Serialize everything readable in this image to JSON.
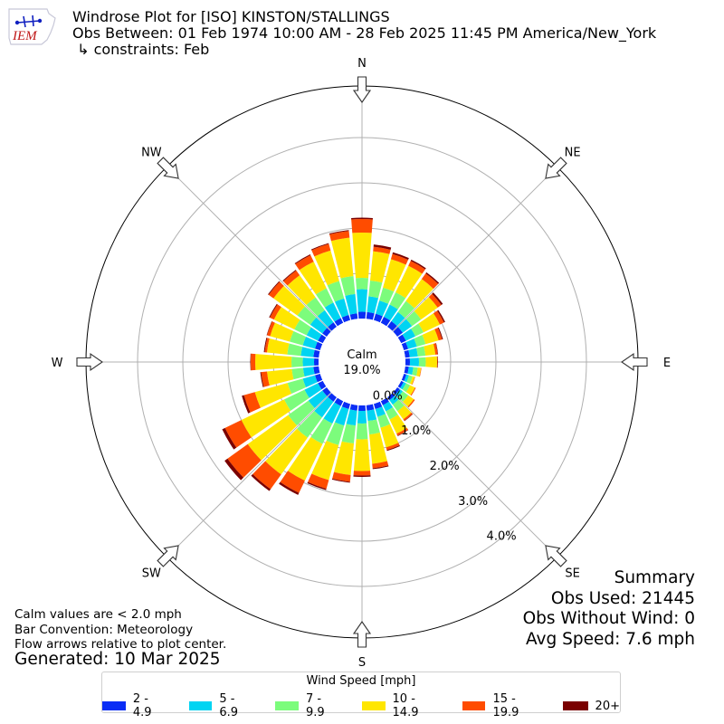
{
  "header": {
    "logo_text": "IEM",
    "title_line1": "Windrose Plot for [ISO] KINSTON/STALLINGS",
    "title_line2": "Obs Between: 01 Feb 1974 10:00 AM - 28 Feb 2025 11:45 PM America/New_York",
    "title_line3": " ↳ constraints: Feb"
  },
  "summary": {
    "heading": "Summary",
    "obs_used": "Obs Used: 21445",
    "obs_without_wind": "Obs Without Wind: 0",
    "avg_speed": "Avg Speed: 7.6 mph"
  },
  "notes": {
    "calm_note": "Calm values are < 2.0 mph",
    "bar_convention": "Bar Convention: Meteorology",
    "flow_arrows": "Flow arrows relative to plot center.",
    "generated": "Generated: 10 Mar 2025"
  },
  "chart_data": {
    "type": "windrose",
    "calm_label": "Calm",
    "calm_percent_label": "19.0%",
    "calm_percent": 19.0,
    "radial_ticks": [
      0.0,
      1.0,
      2.0,
      3.0,
      4.0
    ],
    "radial_tick_labels": [
      "0.0%",
      "1.0%",
      "2.0%",
      "3.0%",
      "4.0%"
    ],
    "r_max": 4.5,
    "compass_labels": [
      "N",
      "NE",
      "E",
      "SE",
      "S",
      "SW",
      "W",
      "NW"
    ],
    "legend": {
      "title": "Wind Speed [mph]",
      "bins": [
        "2 - 4.9",
        "5 - 6.9",
        "7 - 9.9",
        "10 - 14.9",
        "15 - 19.9",
        "20+"
      ],
      "colors": [
        "#0a2df5",
        "#00d4f2",
        "#7cfc7c",
        "#ffe600",
        "#ff4c00",
        "#7a0000"
      ]
    },
    "direction_step_deg": 10,
    "cumulative_percent_by_direction": [
      {
        "dir": 0,
        "values": [
          0.15,
          0.65,
          0.9,
          1.9,
          2.2,
          2.23
        ]
      },
      {
        "dir": 10,
        "values": [
          0.15,
          0.5,
          0.85,
          1.5,
          1.6,
          1.65
        ]
      },
      {
        "dir": 20,
        "values": [
          0.15,
          0.45,
          0.75,
          1.4,
          1.52,
          1.56
        ]
      },
      {
        "dir": 30,
        "values": [
          0.15,
          0.45,
          0.75,
          1.4,
          1.52,
          1.55
        ]
      },
      {
        "dir": 40,
        "values": [
          0.15,
          0.4,
          0.7,
          1.3,
          1.45,
          1.48
        ]
      },
      {
        "dir": 50,
        "values": [
          0.15,
          0.4,
          0.65,
          1.1,
          1.2,
          1.24
        ]
      },
      {
        "dir": 60,
        "values": [
          0.12,
          0.35,
          0.55,
          0.95,
          1.05,
          1.08
        ]
      },
      {
        "dir": 70,
        "values": [
          0.1,
          0.3,
          0.5,
          0.8,
          0.88,
          0.9
        ]
      },
      {
        "dir": 80,
        "values": [
          0.1,
          0.28,
          0.45,
          0.67,
          0.72,
          0.73
        ]
      },
      {
        "dir": 90,
        "values": [
          0.1,
          0.3,
          0.45,
          0.7,
          0.71,
          0.72
        ]
      },
      {
        "dir": 100,
        "values": [
          0.08,
          0.18,
          0.28,
          0.35,
          0.36,
          0.36
        ]
      },
      {
        "dir": 110,
        "values": [
          0.06,
          0.12,
          0.2,
          0.25,
          0.26,
          0.26
        ]
      },
      {
        "dir": 120,
        "values": [
          0.06,
          0.12,
          0.22,
          0.34,
          0.36,
          0.36
        ]
      },
      {
        "dir": 130,
        "values": [
          0.07,
          0.15,
          0.3,
          0.45,
          0.48,
          0.48
        ]
      },
      {
        "dir": 140,
        "values": [
          0.08,
          0.2,
          0.38,
          0.6,
          0.64,
          0.65
        ]
      },
      {
        "dir": 150,
        "values": [
          0.1,
          0.25,
          0.45,
          0.8,
          0.85,
          0.86
        ]
      },
      {
        "dir": 160,
        "values": [
          0.12,
          0.3,
          0.55,
          1.0,
          1.06,
          1.08
        ]
      },
      {
        "dir": 170,
        "values": [
          0.12,
          0.35,
          0.65,
          1.3,
          1.4,
          1.42
        ]
      },
      {
        "dir": 180,
        "values": [
          0.12,
          0.4,
          0.75,
          1.45,
          1.55,
          1.58
        ]
      },
      {
        "dir": 190,
        "values": [
          0.12,
          0.45,
          0.85,
          1.55,
          1.7,
          1.72
        ]
      },
      {
        "dir": 200,
        "values": [
          0.12,
          0.5,
          0.95,
          1.75,
          1.95,
          1.98
        ]
      },
      {
        "dir": 210,
        "values": [
          0.12,
          0.55,
          1.05,
          1.95,
          2.25,
          2.3
        ]
      },
      {
        "dir": 220,
        "values": [
          0.12,
          0.55,
          1.1,
          2.1,
          2.5,
          2.55
        ]
      },
      {
        "dir": 230,
        "values": [
          0.12,
          0.5,
          1.05,
          2.15,
          2.7,
          2.78
        ]
      },
      {
        "dir": 240,
        "values": [
          0.12,
          0.45,
          0.95,
          2.0,
          2.4,
          2.47
        ]
      },
      {
        "dir": 250,
        "values": [
          0.12,
          0.4,
          0.75,
          1.5,
          1.75,
          1.8
        ]
      },
      {
        "dir": 260,
        "values": [
          0.12,
          0.35,
          0.6,
          1.15,
          1.28,
          1.3
        ]
      },
      {
        "dir": 270,
        "values": [
          0.1,
          0.35,
          0.6,
          1.4,
          1.5,
          1.51
        ]
      },
      {
        "dir": 280,
        "values": [
          0.12,
          0.4,
          0.7,
          1.15,
          1.2,
          1.22
        ]
      },
      {
        "dir": 290,
        "values": [
          0.12,
          0.4,
          0.7,
          1.15,
          1.22,
          1.23
        ]
      },
      {
        "dir": 300,
        "values": [
          0.12,
          0.4,
          0.7,
          1.2,
          1.3,
          1.32
        ]
      },
      {
        "dir": 310,
        "values": [
          0.12,
          0.45,
          0.8,
          1.45,
          1.58,
          1.6
        ]
      },
      {
        "dir": 320,
        "values": [
          0.12,
          0.45,
          0.8,
          1.4,
          1.53,
          1.55
        ]
      },
      {
        "dir": 330,
        "values": [
          0.12,
          0.5,
          0.85,
          1.5,
          1.66,
          1.68
        ]
      },
      {
        "dir": 340,
        "values": [
          0.12,
          0.5,
          0.9,
          1.6,
          1.75,
          1.77
        ]
      },
      {
        "dir": 350,
        "values": [
          0.12,
          0.55,
          0.95,
          1.8,
          1.95,
          1.97
        ]
      }
    ]
  }
}
